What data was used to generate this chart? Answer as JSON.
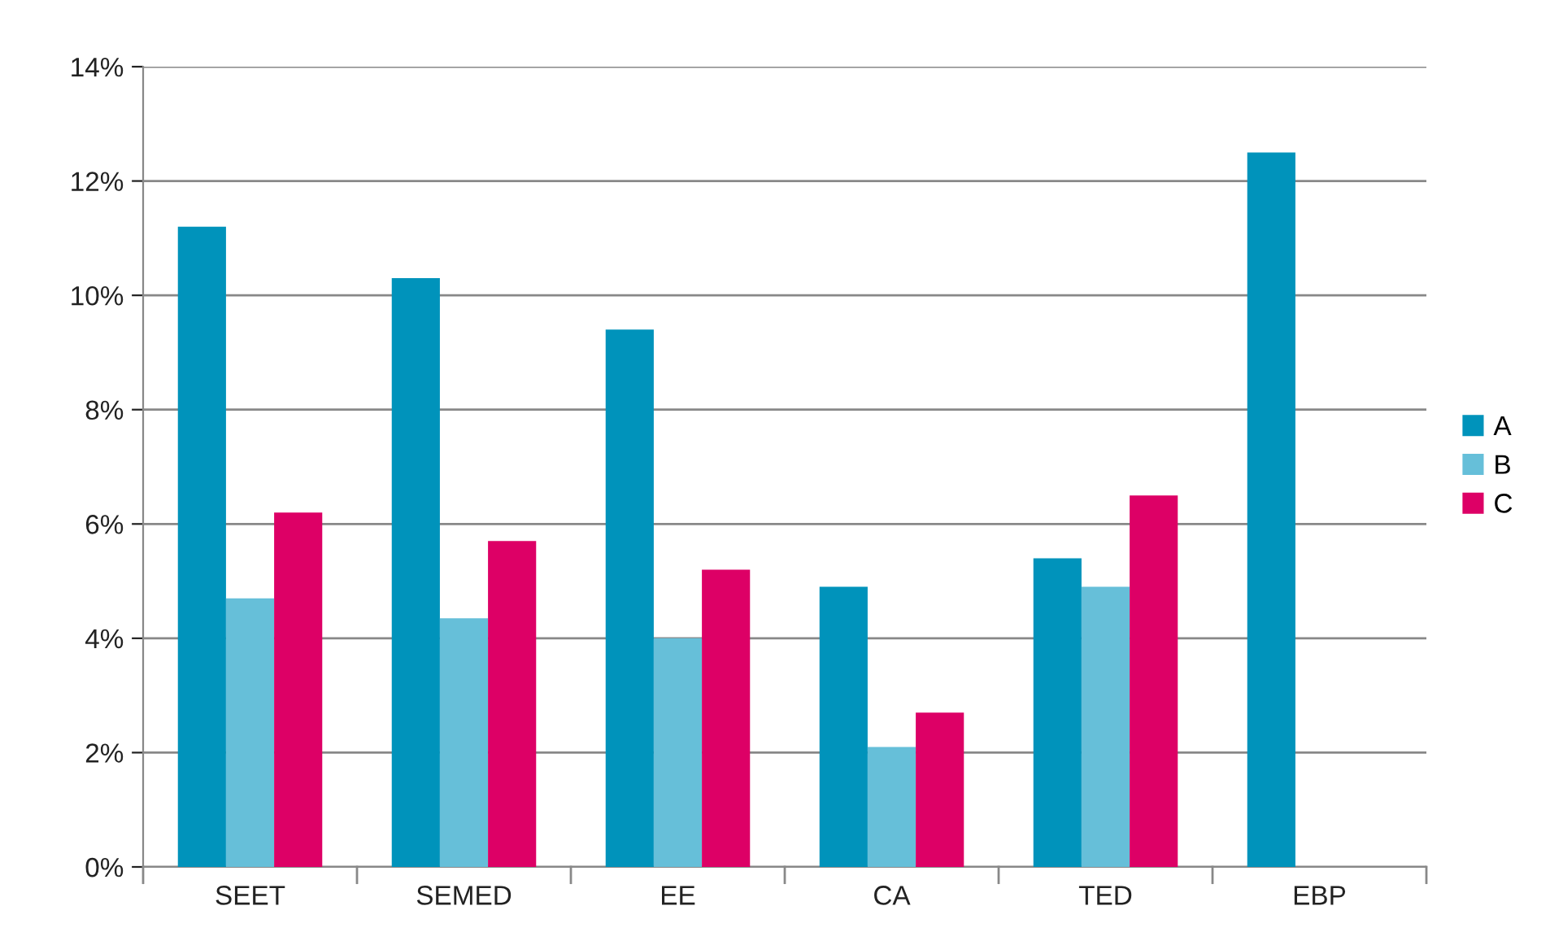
{
  "chart_data": {
    "type": "bar",
    "categories": [
      "SEET",
      "SEMED",
      "EE",
      "CA",
      "TED",
      "EBP"
    ],
    "series": [
      {
        "name": "A",
        "color": "#0093bb",
        "values": [
          11.2,
          10.3,
          9.4,
          4.9,
          5.4,
          12.5
        ]
      },
      {
        "name": "B",
        "color": "#66bfd9",
        "values": [
          4.7,
          4.35,
          4.0,
          2.1,
          4.9,
          null
        ]
      },
      {
        "name": "C",
        "color": "#dd0066",
        "values": [
          6.2,
          5.7,
          5.2,
          2.7,
          6.5,
          null
        ]
      }
    ],
    "ylim": [
      0,
      14
    ],
    "yticks": [
      {
        "value": 0,
        "label": "0%"
      },
      {
        "value": 2,
        "label": "2%"
      },
      {
        "value": 4,
        "label": "4%"
      },
      {
        "value": 6,
        "label": "6%"
      },
      {
        "value": 8,
        "label": "8%"
      },
      {
        "value": 10,
        "label": "10%"
      },
      {
        "value": 12,
        "label": "12%"
      },
      {
        "value": 14,
        "label": "14%"
      }
    ],
    "grid": "y",
    "legend": "right"
  }
}
